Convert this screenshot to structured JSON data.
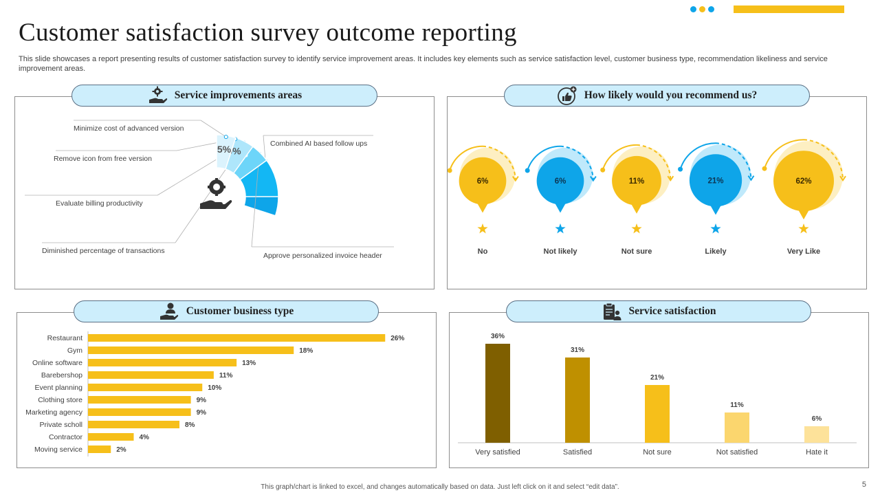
{
  "header": {
    "title": "Customer satisfaction survey outcome reporting",
    "subtitle": "This slide showcases a report presenting results of customer satisfaction survey to identify service improvement areas. It includes key elements such as service satisfaction level, customer business type, recommendation likeliness and service improvement areas."
  },
  "panels": {
    "improvements_title": "Service improvements areas",
    "recommend_title": "How likely would you recommend us?",
    "business_title": "Customer business type",
    "satisfaction_title": "Service satisfaction"
  },
  "footer": {
    "note": "This graph/chart is linked to excel, and changes automatically based on data. Just left click on it and select “edit data”.",
    "page_number": "5"
  },
  "colors": {
    "brand_yellow": "#f6bf1a",
    "brand_blue": "#0ea5e9",
    "pill_fill": "#cdeefc"
  },
  "chart_data": [
    {
      "type": "pie",
      "slices": [
        {
          "label": "Combined  AI based follow ups",
          "value": 30,
          "display": "30%",
          "color": "#0ea5e9"
        },
        {
          "label": "Approve personalized invoice header",
          "value": 25,
          "display": "25%",
          "color": "#13b7f4"
        },
        {
          "label": "Diminished  percentage of transactions",
          "value": 15,
          "display": "15%",
          "color": "#3cc7f7"
        },
        {
          "label": "Evaluate  billing productivity",
          "value": 15,
          "display": "15%",
          "color": "#6dd5f9"
        },
        {
          "label": "Remove icon from free version",
          "value": 10,
          "display": "10%",
          "color": "#aee6fb"
        },
        {
          "label": "Minimize  cost of advanced version",
          "value": 5,
          "display": "5%",
          "color": "#dbf3fd"
        }
      ]
    },
    {
      "type": "bubble",
      "categories": [
        "No",
        "Not likely",
        "Not sure",
        "Likely",
        "Very Like"
      ],
      "values": [
        6,
        6,
        11,
        21,
        62
      ],
      "labels": [
        "6%",
        "6%",
        "11%",
        "21%",
        "62%"
      ],
      "colors": [
        "#f6bf1a",
        "#0ea5e9",
        "#f6bf1a",
        "#0ea5e9",
        "#f6bf1a"
      ]
    },
    {
      "type": "bar",
      "orientation": "horizontal",
      "categories": [
        "Restaurant",
        "Gym",
        "Online software",
        "Barebershop",
        "Event planning",
        "Clothing store",
        "Marketing agency",
        "Private scholl",
        "Contractor",
        "Moving service"
      ],
      "values": [
        26,
        18,
        13,
        11,
        10,
        9,
        9,
        8,
        4,
        2
      ],
      "labels": [
        "26%",
        "18%",
        "13%",
        "11%",
        "10%",
        "9%",
        "9%",
        "8%",
        "4%",
        "2%"
      ],
      "color": "#f6bf1a",
      "xlim": [
        0,
        30
      ]
    },
    {
      "type": "bar",
      "categories": [
        "Very satisfied",
        "Satisfied",
        "Not sure",
        "Not satisfied",
        "Hate it"
      ],
      "values": [
        36,
        31,
        21,
        11,
        6
      ],
      "labels": [
        "36%",
        "31%",
        "21%",
        "11%",
        "6%"
      ],
      "colors": [
        "#7f5f00",
        "#bf9000",
        "#f6bf1a",
        "#fbd66e",
        "#fde29a"
      ],
      "ylim": [
        0,
        36
      ]
    }
  ]
}
